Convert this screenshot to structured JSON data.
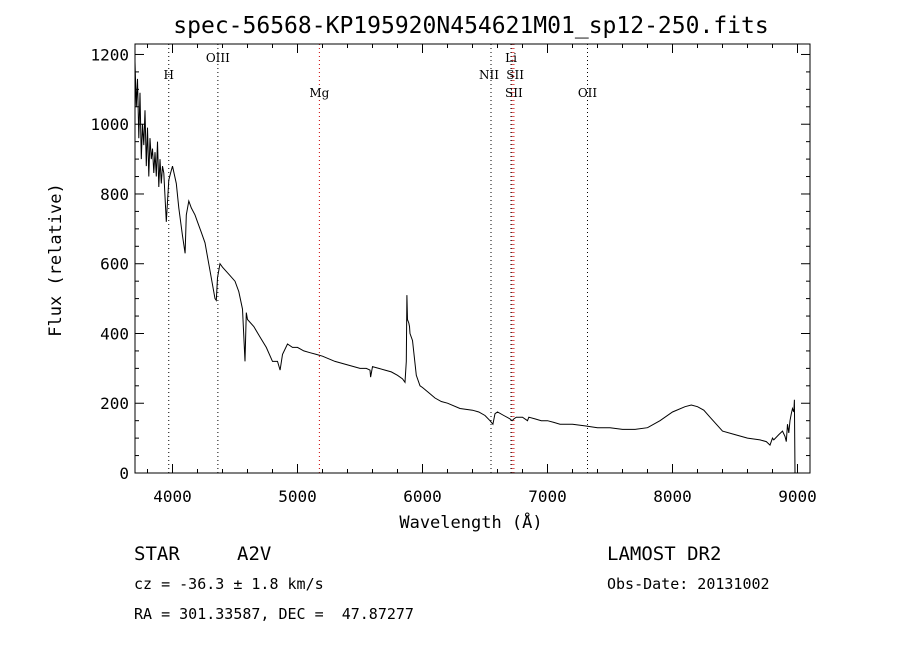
{
  "chart_data": {
    "type": "line",
    "title": "spec-56568-KP195920N454621M01_sp12-250.fits",
    "xlabel": "Wavelength (Å)",
    "ylabel": "Flux (relative)",
    "xlim": [
      3700,
      9100
    ],
    "ylim": [
      0,
      1230
    ],
    "xticks": [
      "4000",
      "5000",
      "6000",
      "7000",
      "8000",
      "9000"
    ],
    "yticks": [
      "0",
      "200",
      "400",
      "600",
      "800",
      "1000",
      "1200"
    ],
    "grid": false,
    "series": [
      {
        "x": [
          3700,
          3710,
          3720,
          3730,
          3740,
          3750,
          3760,
          3770,
          3780,
          3790,
          3800,
          3810,
          3820,
          3830,
          3840,
          3850,
          3860,
          3870,
          3880,
          3890,
          3900,
          3910,
          3920,
          3930,
          3950,
          3970,
          3985,
          4000,
          4030,
          4050,
          4080,
          4101,
          4110,
          4130,
          4150,
          4180,
          4200,
          4230,
          4260,
          4280,
          4300,
          4320,
          4340,
          4350,
          4360,
          4380,
          4400,
          4450,
          4500,
          4530,
          4560,
          4580,
          4590,
          4600,
          4650,
          4700,
          4750,
          4800,
          4840,
          4861,
          4880,
          4920,
          4960,
          5000,
          5050,
          5100,
          5150,
          5200,
          5300,
          5400,
          5500,
          5550,
          5580,
          5585,
          5600,
          5650,
          5700,
          5750,
          5800,
          5840,
          5860,
          5870,
          5875,
          5880,
          5890,
          5896,
          5900,
          5920,
          5950,
          5980,
          6000,
          6050,
          6100,
          6150,
          6200,
          6300,
          6400,
          6450,
          6500,
          6540,
          6563,
          6580,
          6600,
          6650,
          6700,
          6717,
          6731,
          6750,
          6800,
          6840,
          6850,
          6900,
          6950,
          7000,
          7050,
          7100,
          7200,
          7300,
          7400,
          7500,
          7600,
          7700,
          7800,
          7900,
          8000,
          8100,
          8150,
          8200,
          8250,
          8300,
          8400,
          8500,
          8600,
          8700,
          8750,
          8780,
          8800,
          8810,
          8850,
          8880,
          8900,
          8910,
          8920,
          8930,
          8940,
          8950,
          8960,
          8970,
          8975,
          8980,
          8990,
          9000
        ],
        "y": [
          1180,
          1050,
          1130,
          960,
          1090,
          900,
          1000,
          940,
          1040,
          880,
          990,
          850,
          960,
          900,
          930,
          860,
          920,
          850,
          950,
          820,
          900,
          830,
          880,
          860,
          720,
          840,
          860,
          880,
          830,
          760,
          680,
          630,
          740,
          780,
          760,
          740,
          720,
          690,
          660,
          620,
          580,
          540,
          500,
          495,
          560,
          600,
          590,
          570,
          550,
          520,
          470,
          320,
          460,
          440,
          420,
          390,
          360,
          320,
          320,
          295,
          340,
          370,
          360,
          360,
          350,
          345,
          340,
          335,
          320,
          310,
          300,
          300,
          295,
          275,
          305,
          300,
          295,
          290,
          280,
          270,
          260,
          320,
          510,
          440,
          430,
          420,
          400,
          380,
          280,
          250,
          245,
          230,
          215,
          205,
          200,
          185,
          180,
          175,
          165,
          150,
          140,
          170,
          175,
          165,
          155,
          150,
          155,
          160,
          160,
          150,
          160,
          155,
          150,
          150,
          145,
          140,
          140,
          135,
          130,
          130,
          125,
          125,
          130,
          150,
          175,
          190,
          195,
          190,
          180,
          160,
          120,
          110,
          100,
          95,
          90,
          80,
          100,
          95,
          110,
          120,
          105,
          90,
          140,
          115,
          150,
          170,
          185,
          175,
          210,
          0,
          0,
          0
        ]
      }
    ],
    "lines": [
      {
        "label": "H",
        "x": 3970,
        "color": "#000000"
      },
      {
        "label": "OIII",
        "x": 4363,
        "color": "#000000"
      },
      {
        "label": "Mg",
        "x": 5175,
        "color": "#cc0000"
      },
      {
        "label": "NII",
        "x": 6548,
        "color": "#000000"
      },
      {
        "label": "Li",
        "x": 6708,
        "color": "#000000"
      },
      {
        "label": "SII",
        "x": 6717,
        "color": "#cc0000"
      },
      {
        "label": "SII",
        "x": 6731,
        "color": "#cc0000"
      },
      {
        "label": "OII",
        "x": 7320,
        "color": "#000000"
      }
    ]
  },
  "info": {
    "object_class": "STAR",
    "subclass": "A2V",
    "survey": "LAMOST DR2",
    "velocity": "cz = -36.3 ± 1.8 km/s",
    "obs_date": "Obs-Date: 20131002",
    "coords": "RA = 301.33587, DEC =  47.87277"
  }
}
